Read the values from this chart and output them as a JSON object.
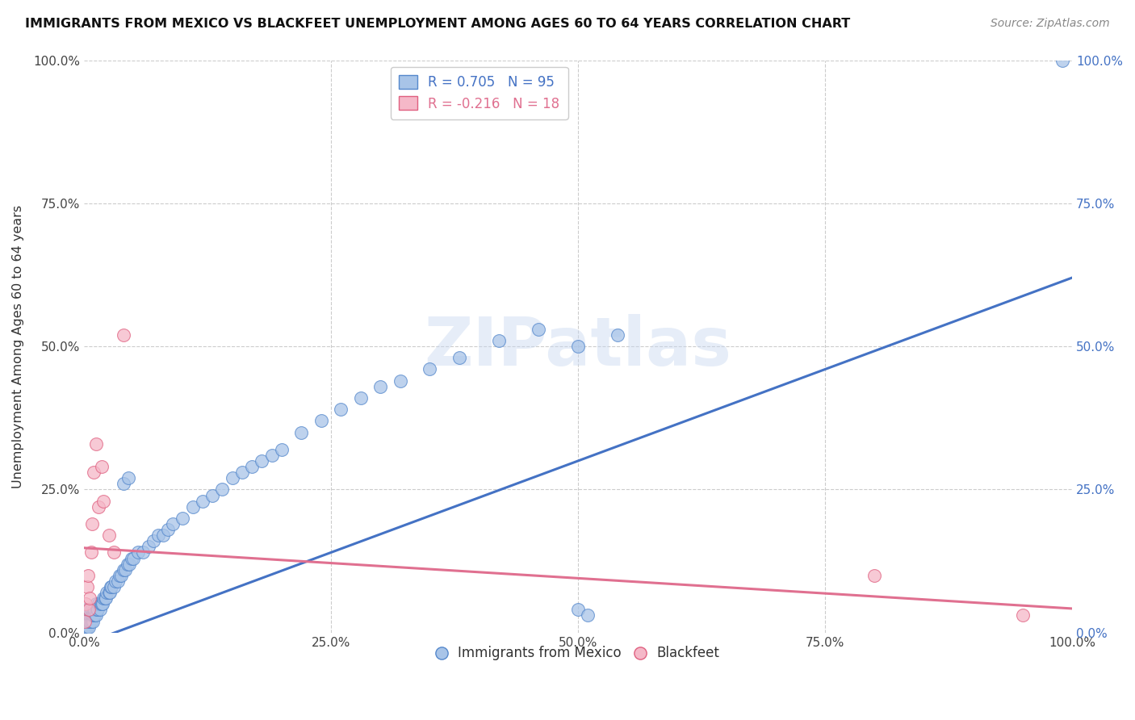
{
  "title": "IMMIGRANTS FROM MEXICO VS BLACKFEET UNEMPLOYMENT AMONG AGES 60 TO 64 YEARS CORRELATION CHART",
  "source": "Source: ZipAtlas.com",
  "ylabel": "Unemployment Among Ages 60 to 64 years",
  "xlim": [
    0,
    1.0
  ],
  "ylim": [
    0,
    1.0
  ],
  "xticks": [
    0,
    0.25,
    0.5,
    0.75,
    1.0
  ],
  "xtick_labels": [
    "0.0%",
    "25.0%",
    "50.0%",
    "75.0%",
    "100.0%"
  ],
  "yticks": [
    0,
    0.25,
    0.5,
    0.75,
    1.0
  ],
  "ytick_labels": [
    "0.0%",
    "25.0%",
    "50.0%",
    "75.0%",
    "100.0%"
  ],
  "right_ytick_labels": [
    "0.0%",
    "25.0%",
    "50.0%",
    "75.0%",
    "100.0%"
  ],
  "series1_color": "#a8c4e8",
  "series1_edge": "#5588cc",
  "series2_color": "#f5b8c8",
  "series2_edge": "#e06080",
  "trend1_color": "#4472c4",
  "trend2_color": "#e07090",
  "legend1_label": "R = 0.705   N = 95",
  "legend2_label": "R = -0.216   N = 18",
  "legend1_series": "Immigrants from Mexico",
  "legend2_series": "Blackfeet",
  "watermark": "ZIPatlas",
  "background": "#ffffff",
  "grid_color": "#cccccc",
  "blue_x": [
    0.001,
    0.001,
    0.001,
    0.002,
    0.002,
    0.002,
    0.002,
    0.003,
    0.003,
    0.003,
    0.003,
    0.004,
    0.004,
    0.004,
    0.005,
    0.005,
    0.005,
    0.006,
    0.006,
    0.006,
    0.007,
    0.007,
    0.007,
    0.008,
    0.008,
    0.009,
    0.009,
    0.01,
    0.01,
    0.011,
    0.011,
    0.012,
    0.012,
    0.013,
    0.014,
    0.015,
    0.016,
    0.017,
    0.018,
    0.019,
    0.02,
    0.021,
    0.022,
    0.023,
    0.025,
    0.026,
    0.027,
    0.028,
    0.03,
    0.032,
    0.034,
    0.036,
    0.038,
    0.04,
    0.042,
    0.044,
    0.046,
    0.048,
    0.05,
    0.055,
    0.06,
    0.065,
    0.07,
    0.075,
    0.08,
    0.085,
    0.09,
    0.1,
    0.11,
    0.12,
    0.13,
    0.14,
    0.15,
    0.16,
    0.17,
    0.18,
    0.19,
    0.2,
    0.22,
    0.24,
    0.26,
    0.28,
    0.3,
    0.32,
    0.35,
    0.38,
    0.42,
    0.46,
    0.5,
    0.54,
    0.04,
    0.045,
    0.5,
    0.51,
    0.99
  ],
  "blue_y": [
    0.01,
    0.02,
    0.03,
    0.01,
    0.02,
    0.03,
    0.04,
    0.01,
    0.02,
    0.03,
    0.04,
    0.02,
    0.03,
    0.04,
    0.01,
    0.02,
    0.03,
    0.02,
    0.03,
    0.04,
    0.02,
    0.03,
    0.04,
    0.03,
    0.04,
    0.02,
    0.03,
    0.03,
    0.04,
    0.03,
    0.04,
    0.03,
    0.05,
    0.04,
    0.04,
    0.05,
    0.04,
    0.05,
    0.05,
    0.05,
    0.06,
    0.06,
    0.06,
    0.07,
    0.07,
    0.07,
    0.08,
    0.08,
    0.08,
    0.09,
    0.09,
    0.1,
    0.1,
    0.11,
    0.11,
    0.12,
    0.12,
    0.13,
    0.13,
    0.14,
    0.14,
    0.15,
    0.16,
    0.17,
    0.17,
    0.18,
    0.19,
    0.2,
    0.22,
    0.23,
    0.24,
    0.25,
    0.27,
    0.28,
    0.29,
    0.3,
    0.31,
    0.32,
    0.35,
    0.37,
    0.39,
    0.41,
    0.43,
    0.44,
    0.46,
    0.48,
    0.51,
    0.53,
    0.5,
    0.52,
    0.26,
    0.27,
    0.04,
    0.03,
    1.0
  ],
  "pink_x": [
    0.001,
    0.002,
    0.003,
    0.004,
    0.005,
    0.006,
    0.007,
    0.008,
    0.01,
    0.012,
    0.015,
    0.018,
    0.02,
    0.025,
    0.03,
    0.04,
    0.8,
    0.95
  ],
  "pink_y": [
    0.02,
    0.05,
    0.08,
    0.1,
    0.04,
    0.06,
    0.14,
    0.19,
    0.28,
    0.33,
    0.22,
    0.29,
    0.23,
    0.17,
    0.14,
    0.52,
    0.1,
    0.03
  ],
  "trend1_x0": 0.0,
  "trend1_x1": 1.0,
  "trend1_y0": -0.02,
  "trend1_y1": 0.62,
  "trend2_x0": 0.0,
  "trend2_x1": 1.0,
  "trend2_y0": 0.148,
  "trend2_y1": 0.042
}
